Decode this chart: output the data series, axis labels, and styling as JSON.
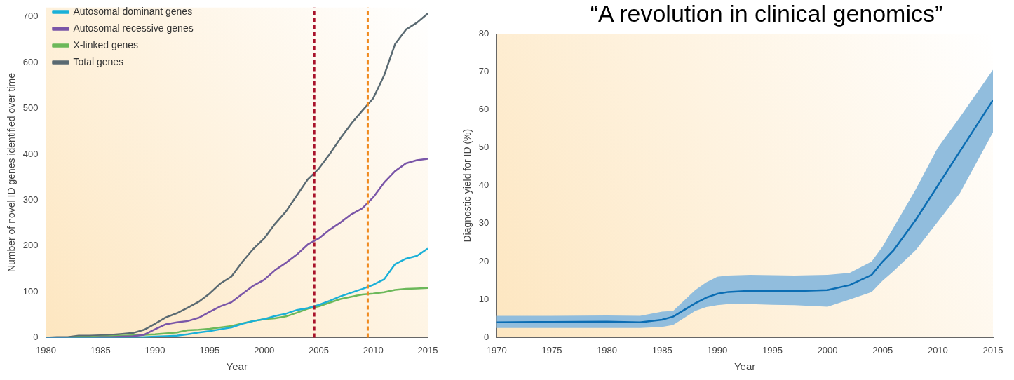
{
  "chart_data": [
    {
      "type": "line",
      "xlabel": "Year",
      "ylabel": "Number of novel ID genes identified over time",
      "x": [
        1980,
        1981,
        1982,
        1983,
        1984,
        1985,
        1986,
        1987,
        1988,
        1989,
        1990,
        1991,
        1992,
        1993,
        1994,
        1995,
        1996,
        1997,
        1998,
        1999,
        2000,
        2001,
        2002,
        2003,
        2004,
        2005,
        2006,
        2007,
        2008,
        2009,
        2010,
        2011,
        2012,
        2013,
        2014,
        2015
      ],
      "series": [
        {
          "name": "Autosomal dominant genes",
          "color": "#1ab0d8",
          "values": [
            0,
            0,
            0,
            0,
            0,
            0,
            0,
            0,
            0,
            1,
            2,
            3,
            4,
            7,
            11,
            14,
            18,
            22,
            30,
            36,
            40,
            47,
            52,
            60,
            64,
            71,
            80,
            90,
            98,
            106,
            115,
            127,
            160,
            172,
            178,
            194
          ]
        },
        {
          "name": "Autosomal recessive genes",
          "color": "#7a56a8",
          "values": [
            0,
            0,
            0,
            0,
            0,
            1,
            1,
            2,
            3,
            6,
            18,
            29,
            33,
            36,
            43,
            56,
            68,
            77,
            95,
            113,
            126,
            147,
            163,
            181,
            203,
            216,
            235,
            251,
            269,
            282,
            306,
            338,
            363,
            380,
            387,
            390
          ]
        },
        {
          "name": "X-linked genes",
          "color": "#6cb85a",
          "values": [
            null,
            null,
            0,
            1,
            1,
            2,
            3,
            4,
            5,
            6,
            7,
            9,
            11,
            16,
            17,
            19,
            22,
            25,
            31,
            36,
            40,
            42,
            46,
            54,
            63,
            68,
            76,
            84,
            89,
            94,
            96,
            99,
            104,
            106,
            107,
            108
          ]
        },
        {
          "name": "Total genes",
          "color": "#5a6a72",
          "values": [
            0,
            1,
            1,
            4,
            4,
            5,
            6,
            8,
            10,
            17,
            30,
            44,
            53,
            65,
            78,
            96,
            118,
            133,
            165,
            193,
            216,
            248,
            275,
            310,
            345,
            368,
            400,
            435,
            467,
            495,
            522,
            572,
            640,
            672,
            687,
            707
          ]
        }
      ],
      "xlim": [
        1980,
        2015
      ],
      "xticks": [
        1980,
        1985,
        1990,
        1995,
        2000,
        2005,
        2010,
        2015
      ],
      "ylim": [
        0,
        720
      ],
      "yticks": [
        0,
        100,
        200,
        300,
        400,
        500,
        600,
        700
      ],
      "grid": false,
      "legend": "top left",
      "marker": "none",
      "line_style": "solid",
      "ref_lines": [
        {
          "axis": "x",
          "value": 2004.6,
          "color": "#a8122a",
          "line_style": "dashed"
        },
        {
          "axis": "x",
          "value": 2009.5,
          "color": "#f08a1e",
          "line_style": "dashed"
        }
      ]
    },
    {
      "type": "line",
      "title": "“A revolution in clinical genomics”",
      "xlabel": "Year",
      "ylabel": "Diagnostic yield for ID (%)",
      "x": [
        1970,
        1975,
        1980,
        1983,
        1985,
        1986,
        1988,
        1989,
        1990,
        1991,
        1993,
        1995,
        1997,
        2000,
        2002,
        2004,
        2005,
        2006,
        2008,
        2010,
        2012,
        2015
      ],
      "series": [
        {
          "color": "#0b6db3",
          "values": [
            4,
            4.1,
            4.2,
            4,
            4.7,
            5.5,
            9,
            10.5,
            11.5,
            12,
            12.3,
            12.3,
            12.2,
            12.5,
            13.8,
            16.5,
            20,
            23,
            31,
            40,
            49,
            62.5
          ],
          "lower": [
            2.5,
            2.5,
            2.5,
            2.5,
            2.8,
            3.3,
            7,
            8,
            8.5,
            8.8,
            8.8,
            8.6,
            8.5,
            8.1,
            10,
            12,
            15,
            17.5,
            23,
            30.5,
            38,
            54
          ],
          "upper": [
            5.7,
            5.7,
            5.8,
            5.7,
            6.8,
            7,
            12.5,
            14.5,
            16,
            16.3,
            16.5,
            16.4,
            16.3,
            16.5,
            17,
            20,
            24,
            29,
            39,
            50,
            58,
            70.5
          ]
        }
      ],
      "xlim": [
        1970,
        2015
      ],
      "xticks": [
        1970,
        1975,
        1980,
        1985,
        1990,
        1995,
        2000,
        2005,
        2010,
        2015
      ],
      "ylim": [
        0,
        80
      ],
      "yticks": [
        0,
        10,
        20,
        30,
        40,
        50,
        60,
        70,
        80
      ],
      "grid": false,
      "legend": false,
      "marker": "none",
      "line_style": "solid"
    }
  ]
}
